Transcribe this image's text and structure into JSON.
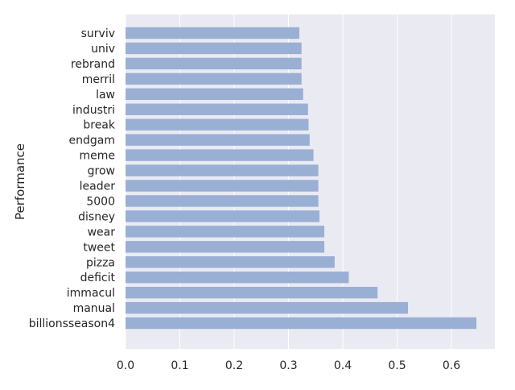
{
  "chart_data": {
    "type": "bar",
    "orientation": "horizontal",
    "title": "",
    "xlabel": "",
    "ylabel": "Performance",
    "categories": [
      "surviv",
      "univ",
      "rebrand",
      "merril",
      "law",
      "industri",
      "break",
      "endgam",
      "meme",
      "grow",
      "leader",
      "5000",
      "disney",
      "wear",
      "tweet",
      "pizza",
      "deficit",
      "immacul",
      "manual",
      "billionsseason4"
    ],
    "values": [
      0.32,
      0.324,
      0.324,
      0.324,
      0.327,
      0.336,
      0.337,
      0.339,
      0.346,
      0.355,
      0.355,
      0.355,
      0.357,
      0.366,
      0.366,
      0.385,
      0.411,
      0.464,
      0.52,
      0.646
    ],
    "xlim": [
      0,
      0.68
    ],
    "xticks": [
      0.0,
      0.1,
      0.2,
      0.3,
      0.4,
      0.5,
      0.6
    ],
    "xtick_labels": [
      "0.0",
      "0.1",
      "0.2",
      "0.3",
      "0.4",
      "0.5",
      "0.6"
    ],
    "grid": true,
    "legend": "none",
    "colors": {
      "bar": "#9aafd4",
      "background": "#eaeaf2",
      "grid": "#ffffff",
      "text": "#262626"
    }
  }
}
